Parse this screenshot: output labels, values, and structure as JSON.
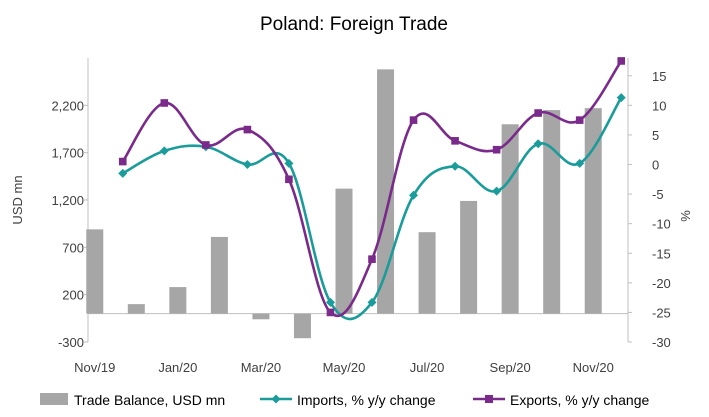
{
  "chart_data": {
    "type": "bar+line",
    "title": "Poland: Foreign Trade",
    "categories": [
      "Nov/19",
      "Dec/19",
      "Jan/20",
      "Feb/20",
      "Mar/20",
      "Apr/20",
      "May/20",
      "Jun/20",
      "Jul/20",
      "Aug/20",
      "Sep/20",
      "Oct/20",
      "Nov/20"
    ],
    "x_tick_labels": [
      "Nov/19",
      "Jan/20",
      "Mar/20",
      "May/20",
      "Jul/20",
      "Sep/20",
      "Nov/20"
    ],
    "left_axis": {
      "label": "USD mn",
      "ylim": [
        -300,
        2700
      ],
      "ticks": [
        -300,
        200,
        700,
        1200,
        1700,
        2200
      ],
      "tick_labels": [
        "-300",
        "200",
        "700",
        "1,200",
        "1,700",
        "2,200"
      ]
    },
    "right_axis": {
      "label": "%",
      "ylim": [
        -30,
        18
      ],
      "ticks": [
        -30,
        -25,
        -20,
        -15,
        -10,
        -5,
        0,
        5,
        10,
        15
      ],
      "tick_labels": [
        "-30",
        "-25",
        "-20",
        "-15",
        "-10",
        "-5",
        "0",
        "5",
        "10",
        "15"
      ]
    },
    "series": [
      {
        "name": "Trade Balance, USD mn",
        "type": "bar",
        "axis": "left",
        "color": "#a6a6a6",
        "values": [
          890,
          100,
          280,
          810,
          -60,
          -260,
          1320,
          2580,
          860,
          1190,
          2000,
          2150,
          2170
        ]
      },
      {
        "name": "Imports, % y/y change",
        "type": "line",
        "axis": "right",
        "color": "#1a9c9a",
        "marker": "diamond",
        "values": [
          -1.5,
          2.3,
          3.0,
          0.0,
          0.2,
          -23.3,
          -23.3,
          -5.2,
          -0.3,
          -4.5,
          3.5,
          0.2,
          11.3
        ]
      },
      {
        "name": "Exports, % y/y change",
        "type": "line",
        "axis": "right",
        "color": "#7a2a8a",
        "marker": "square",
        "values": [
          0.5,
          10.4,
          3.3,
          5.9,
          -2.5,
          -25.0,
          -16.0,
          7.5,
          4.0,
          2.5,
          8.7,
          7.5,
          17.5
        ]
      }
    ],
    "legend_position": "bottom",
    "grid": false
  }
}
